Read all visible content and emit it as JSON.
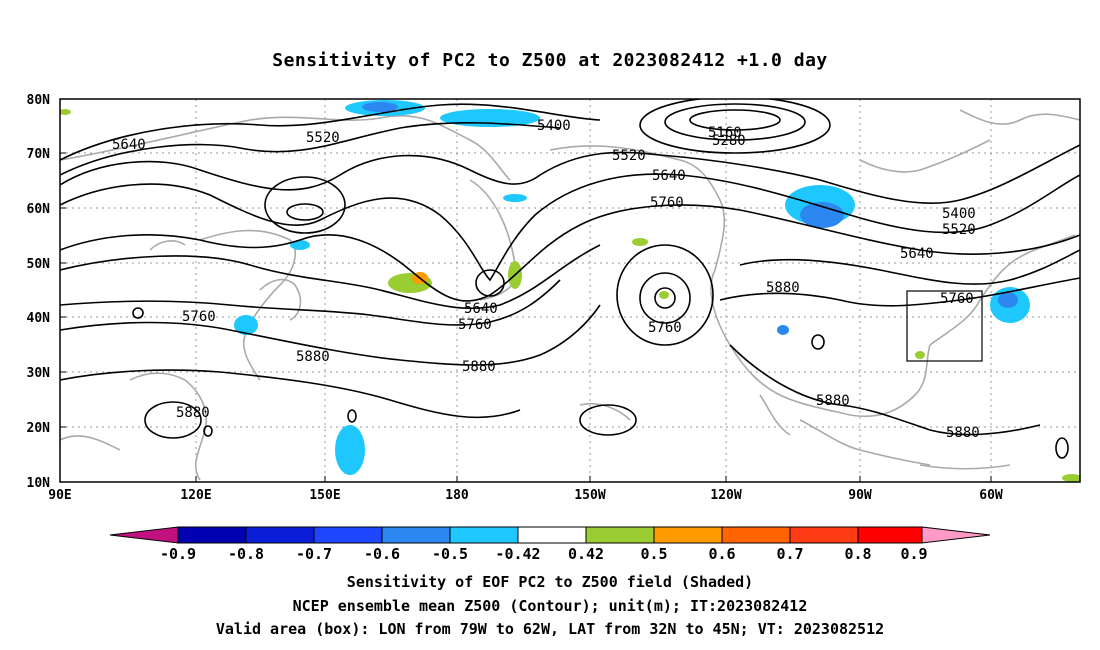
{
  "title": "Sensitivity of PC2 to Z500 at 2023082412 +1.0 day",
  "lat_labels": [
    "80N",
    "70N",
    "60N",
    "50N",
    "40N",
    "30N",
    "20N",
    "10N"
  ],
  "lon_labels": [
    "90E",
    "120E",
    "150E",
    "180",
    "150W",
    "120W",
    "90W",
    "60W"
  ],
  "contour_labels": [
    {
      "text": "5640"
    },
    {
      "text": "5520"
    },
    {
      "text": "5400"
    },
    {
      "text": "5160"
    },
    {
      "text": "5280"
    },
    {
      "text": "5520"
    },
    {
      "text": "5640"
    },
    {
      "text": "5760"
    },
    {
      "text": "5400"
    },
    {
      "text": "5520"
    },
    {
      "text": "5640"
    },
    {
      "text": "5760"
    },
    {
      "text": "5880"
    },
    {
      "text": "5640"
    },
    {
      "text": "5760"
    },
    {
      "text": "5760"
    },
    {
      "text": "5880"
    },
    {
      "text": "5880"
    },
    {
      "text": "5880"
    },
    {
      "text": "5760"
    },
    {
      "text": "5880"
    },
    {
      "text": "5880"
    }
  ],
  "colorbar": {
    "labels": [
      "-0.9",
      "-0.8",
      "-0.7",
      "-0.6",
      "-0.5",
      "-0.42",
      "0.42",
      "0.5",
      "0.6",
      "0.7",
      "0.8",
      "0.9"
    ],
    "colors": {
      "low_arrow": "#c0117f",
      "bins": [
        "#0000b0",
        "#0a1ed8",
        "#1e46ff",
        "#2c88f0",
        "#1ec8ff",
        "#ffffff",
        "#9acd32",
        "#ff9a00",
        "#ff6400",
        "#ff3c14",
        "#ff0000"
      ],
      "high_arrow": "#ff9ac8"
    }
  },
  "captions": {
    "line1": "Sensitivity of EOF PC2 to Z500 field (Shaded)",
    "line2": "NCEP ensemble mean Z500 (Contour); unit(m); IT:2023082412",
    "line3": "Valid area (box): LON from 79W to 62W, LAT from 32N to 45N; VT: 2023082512"
  },
  "valid_box": {
    "lon_min": "79W",
    "lon_max": "62W",
    "lat_min": "32N",
    "lat_max": "45N"
  }
}
